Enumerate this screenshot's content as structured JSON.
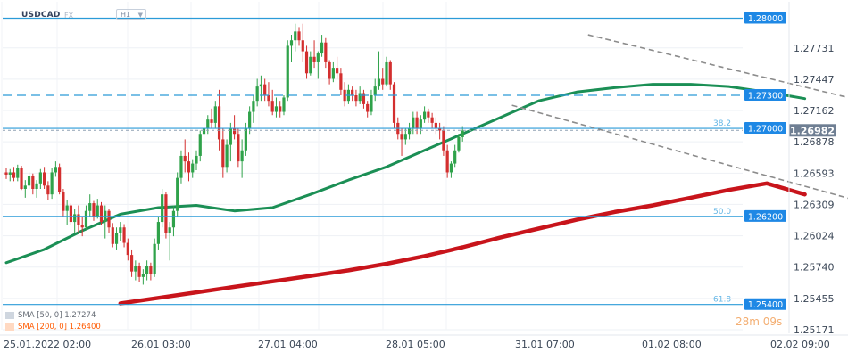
{
  "header": {
    "symbol": "USDCAD",
    "asset_class": "FX",
    "timeframe": "H1"
  },
  "legend": {
    "sma50": {
      "label": "SMA [50, 0] 1.27274",
      "color": "#1b8f55"
    },
    "sma200": {
      "label": "SMA [200, 0] 1.26400",
      "color": "#c8141b"
    }
  },
  "watermark": "28m 09s",
  "chart_data": {
    "type": "candlestick",
    "instrument": "USDCAD",
    "timeframe": "H1",
    "ylim": [
      1.25171,
      1.2815
    ],
    "y_ticks": [
      1.28,
      1.27731,
      1.27447,
      1.27162,
      1.26878,
      1.26593,
      1.26309,
      1.26024,
      1.2574,
      1.25455,
      1.25171
    ],
    "y_tick_labels": [
      "1.28000",
      "1.27731",
      "1.27447",
      "1.27162",
      "1.26878",
      "1.26593",
      "1.26309",
      "1.26024",
      "1.25740",
      "1.25455",
      "1.25171"
    ],
    "x_tick_labels": [
      "25.01.2022 02:00",
      "26.01 03:00",
      "27.01 04:00",
      "28.01 05:00",
      "31.01 07:00",
      "01.02 08:00",
      "02.02 09:00"
    ],
    "current_price": {
      "value": 1.26982,
      "label": "1.26982"
    },
    "horizontal_levels": [
      {
        "value": 1.28,
        "label": "1.28000",
        "style": "solid",
        "fib": ""
      },
      {
        "value": 1.273,
        "label": "1.27300",
        "style": "dashed",
        "fib": ""
      },
      {
        "value": 1.27,
        "label": "1.27000",
        "style": "solid",
        "fib": "38.2"
      },
      {
        "value": 1.262,
        "label": "1.26200",
        "style": "solid",
        "fib": "50.0"
      },
      {
        "value": 1.254,
        "label": "1.25400",
        "style": "solid",
        "fib": "61.8"
      }
    ],
    "trendlines": [
      {
        "from": [
          153,
          1.2785
        ],
        "to": [
          225,
          1.2725
        ],
        "style": "dashed"
      },
      {
        "from": [
          133,
          1.2721
        ],
        "to": [
          222,
          1.2636
        ],
        "style": "dashed"
      }
    ],
    "sma50": [
      [
        0,
        1.2578
      ],
      [
        10,
        1.259
      ],
      [
        20,
        1.2607
      ],
      [
        30,
        1.2622
      ],
      [
        40,
        1.2628
      ],
      [
        50,
        1.263
      ],
      [
        60,
        1.2625
      ],
      [
        70,
        1.2628
      ],
      [
        80,
        1.264
      ],
      [
        90,
        1.2653
      ],
      [
        100,
        1.2665
      ],
      [
        110,
        1.268
      ],
      [
        120,
        1.2695
      ],
      [
        130,
        1.271
      ],
      [
        140,
        1.2725
      ],
      [
        150,
        1.2733
      ],
      [
        160,
        1.2737
      ],
      [
        170,
        1.274
      ],
      [
        180,
        1.274
      ],
      [
        190,
        1.2738
      ],
      [
        200,
        1.2733
      ],
      [
        210,
        1.2727
      ]
    ],
    "sma200": [
      [
        30,
        1.2541
      ],
      [
        40,
        1.2546
      ],
      [
        50,
        1.2551
      ],
      [
        60,
        1.2556
      ],
      [
        70,
        1.2561
      ],
      [
        80,
        1.2566
      ],
      [
        90,
        1.2571
      ],
      [
        100,
        1.2577
      ],
      [
        110,
        1.2584
      ],
      [
        120,
        1.2592
      ],
      [
        130,
        1.2601
      ],
      [
        140,
        1.2609
      ],
      [
        150,
        1.2617
      ],
      [
        160,
        1.2624
      ],
      [
        170,
        1.263
      ],
      [
        180,
        1.2637
      ],
      [
        190,
        1.2644
      ],
      [
        200,
        1.265
      ],
      [
        210,
        1.264
      ]
    ],
    "candles": [
      [
        1.266,
        1.2664,
        1.2654,
        1.2658
      ],
      [
        1.2658,
        1.2663,
        1.2652,
        1.266
      ],
      [
        1.266,
        1.2665,
        1.2652,
        1.2655
      ],
      [
        1.2655,
        1.2667,
        1.2652,
        1.2664
      ],
      [
        1.2664,
        1.2666,
        1.2644,
        1.2645
      ],
      [
        1.2645,
        1.2653,
        1.2637,
        1.2648
      ],
      [
        1.2648,
        1.266,
        1.2645,
        1.2657
      ],
      [
        1.2657,
        1.2659,
        1.264,
        1.2645
      ],
      [
        1.2645,
        1.2653,
        1.2637,
        1.265
      ],
      [
        1.265,
        1.2663,
        1.2645,
        1.266
      ],
      [
        1.266,
        1.2665,
        1.2645,
        1.2648
      ],
      [
        1.2648,
        1.2652,
        1.2635,
        1.264
      ],
      [
        1.264,
        1.2664,
        1.2636,
        1.266
      ],
      [
        1.266,
        1.267,
        1.2656,
        1.2665
      ],
      [
        1.2665,
        1.2668,
        1.264,
        1.2642
      ],
      [
        1.2642,
        1.2645,
        1.262,
        1.2625
      ],
      [
        1.2625,
        1.2635,
        1.2612,
        1.263
      ],
      [
        1.263,
        1.2632,
        1.2612,
        1.2615
      ],
      [
        1.2615,
        1.2627,
        1.2605,
        1.2622
      ],
      [
        1.2622,
        1.263,
        1.2605,
        1.2612
      ],
      [
        1.2612,
        1.262,
        1.2602,
        1.261
      ],
      [
        1.261,
        1.263,
        1.2608,
        1.2625
      ],
      [
        1.2625,
        1.264,
        1.262,
        1.2632
      ],
      [
        1.2632,
        1.2634,
        1.2616,
        1.262
      ],
      [
        1.262,
        1.2636,
        1.2618,
        1.263
      ],
      [
        1.263,
        1.2633,
        1.2612,
        1.2615
      ],
      [
        1.2615,
        1.263,
        1.26,
        1.2625
      ],
      [
        1.2625,
        1.2627,
        1.2605,
        1.261
      ],
      [
        1.261,
        1.2614,
        1.2592,
        1.2595
      ],
      [
        1.2595,
        1.261,
        1.259,
        1.2605
      ],
      [
        1.2605,
        1.2615,
        1.2598,
        1.261
      ],
      [
        1.261,
        1.2613,
        1.2592,
        1.2596
      ],
      [
        1.2596,
        1.26,
        1.258,
        1.2585
      ],
      [
        1.2585,
        1.259,
        1.2565,
        1.257
      ],
      [
        1.257,
        1.258,
        1.2562,
        1.2575
      ],
      [
        1.2575,
        1.2578,
        1.256,
        1.2565
      ],
      [
        1.2565,
        1.2572,
        1.2558,
        1.2568
      ],
      [
        1.2568,
        1.258,
        1.2562,
        1.2575
      ],
      [
        1.2575,
        1.2578,
        1.2562,
        1.2568
      ],
      [
        1.2568,
        1.26,
        1.2565,
        1.2595
      ],
      [
        1.2595,
        1.262,
        1.259,
        1.2615
      ],
      [
        1.2615,
        1.2645,
        1.261,
        1.264
      ],
      [
        1.264,
        1.2642,
        1.26,
        1.2605
      ],
      [
        1.2605,
        1.2615,
        1.258,
        1.261
      ],
      [
        1.261,
        1.263,
        1.2602,
        1.2625
      ],
      [
        1.2625,
        1.266,
        1.262,
        1.2655
      ],
      [
        1.2655,
        1.268,
        1.265,
        1.2675
      ],
      [
        1.2675,
        1.269,
        1.266,
        1.267
      ],
      [
        1.267,
        1.2678,
        1.2652,
        1.266
      ],
      [
        1.266,
        1.2672,
        1.2655,
        1.2668
      ],
      [
        1.2668,
        1.268,
        1.2662,
        1.2675
      ],
      [
        1.2675,
        1.2698,
        1.267,
        1.2695
      ],
      [
        1.2695,
        1.2705,
        1.269,
        1.27
      ],
      [
        1.27,
        1.2712,
        1.2695,
        1.2708
      ],
      [
        1.2708,
        1.2718,
        1.27,
        1.2705
      ],
      [
        1.2705,
        1.2725,
        1.27,
        1.272
      ],
      [
        1.272,
        1.2735,
        1.268,
        1.269
      ],
      [
        1.269,
        1.27,
        1.2655,
        1.2665
      ],
      [
        1.2665,
        1.269,
        1.266,
        1.2685
      ],
      [
        1.2685,
        1.2705,
        1.267,
        1.27
      ],
      [
        1.27,
        1.2712,
        1.269,
        1.2695
      ],
      [
        1.2695,
        1.27,
        1.2665,
        1.267
      ],
      [
        1.267,
        1.269,
        1.2655,
        1.268
      ],
      [
        1.268,
        1.2705,
        1.2675,
        1.27
      ],
      [
        1.27,
        1.272,
        1.2695,
        1.2715
      ],
      [
        1.2715,
        1.273,
        1.2705,
        1.2725
      ],
      [
        1.2725,
        1.2745,
        1.272,
        1.2738
      ],
      [
        1.2738,
        1.2748,
        1.2725,
        1.274
      ],
      [
        1.274,
        1.2745,
        1.2725,
        1.273
      ],
      [
        1.273,
        1.2742,
        1.272,
        1.2725
      ],
      [
        1.2725,
        1.2735,
        1.2712,
        1.2715
      ],
      [
        1.2715,
        1.2728,
        1.271,
        1.272
      ],
      [
        1.272,
        1.2725,
        1.271,
        1.2715
      ],
      [
        1.2715,
        1.273,
        1.2712,
        1.2728
      ],
      [
        1.2728,
        1.278,
        1.2725,
        1.2775
      ],
      [
        1.2775,
        1.2785,
        1.276,
        1.278
      ],
      [
        1.278,
        1.2795,
        1.277,
        1.2788
      ],
      [
        1.2788,
        1.2792,
        1.2775,
        1.278
      ],
      [
        1.278,
        1.2795,
        1.276,
        1.277
      ],
      [
        1.277,
        1.2775,
        1.2745,
        1.275
      ],
      [
        1.275,
        1.277,
        1.2748,
        1.2765
      ],
      [
        1.2765,
        1.278,
        1.2755,
        1.276
      ],
      [
        1.276,
        1.277,
        1.2745,
        1.2768
      ],
      [
        1.2768,
        1.2785,
        1.2765,
        1.2778
      ],
      [
        1.2778,
        1.2782,
        1.2755,
        1.276
      ],
      [
        1.276,
        1.2762,
        1.274,
        1.2745
      ],
      [
        1.2745,
        1.276,
        1.2742,
        1.2755
      ],
      [
        1.2755,
        1.2765,
        1.2745,
        1.275
      ],
      [
        1.275,
        1.2755,
        1.273,
        1.2735
      ],
      [
        1.2735,
        1.2742,
        1.272,
        1.2725
      ],
      [
        1.2725,
        1.274,
        1.2722,
        1.2735
      ],
      [
        1.2735,
        1.2738,
        1.2725,
        1.273
      ],
      [
        1.273,
        1.2735,
        1.272,
        1.2725
      ],
      [
        1.2725,
        1.2738,
        1.2722,
        1.2732
      ],
      [
        1.2732,
        1.2735,
        1.2718,
        1.2722
      ],
      [
        1.2722,
        1.2725,
        1.271,
        1.2715
      ],
      [
        1.2715,
        1.2735,
        1.2712,
        1.273
      ],
      [
        1.273,
        1.2745,
        1.2725,
        1.2738
      ],
      [
        1.2738,
        1.277,
        1.2735,
        1.2745
      ],
      [
        1.2745,
        1.2755,
        1.2735,
        1.274
      ],
      [
        1.274,
        1.2765,
        1.2738,
        1.276
      ],
      [
        1.276,
        1.2762,
        1.2735,
        1.274
      ],
      [
        1.274,
        1.2742,
        1.27,
        1.2705
      ],
      [
        1.2705,
        1.271,
        1.269,
        1.2695
      ],
      [
        1.2695,
        1.27,
        1.2675,
        1.269
      ],
      [
        1.269,
        1.27,
        1.2685,
        1.2695
      ],
      [
        1.2695,
        1.2705,
        1.269,
        1.27
      ],
      [
        1.27,
        1.2715,
        1.2695,
        1.271
      ],
      [
        1.271,
        1.2715,
        1.2695,
        1.27
      ],
      [
        1.27,
        1.2712,
        1.2695,
        1.2708
      ],
      [
        1.2708,
        1.272,
        1.2705,
        1.2715
      ],
      [
        1.2715,
        1.2718,
        1.2705,
        1.271
      ],
      [
        1.271,
        1.2714,
        1.27,
        1.2705
      ],
      [
        1.2705,
        1.271,
        1.2695,
        1.27
      ],
      [
        1.27,
        1.2705,
        1.269,
        1.2698
      ],
      [
        1.2698,
        1.2702,
        1.2675,
        1.268
      ],
      [
        1.268,
        1.2685,
        1.2655,
        1.266
      ],
      [
        1.266,
        1.267,
        1.2655,
        1.2668
      ],
      [
        1.2668,
        1.2685,
        1.2665,
        1.268
      ],
      [
        1.268,
        1.2695,
        1.2678,
        1.2692
      ],
      [
        1.2692,
        1.2702,
        1.2688,
        1.2698
      ]
    ]
  }
}
